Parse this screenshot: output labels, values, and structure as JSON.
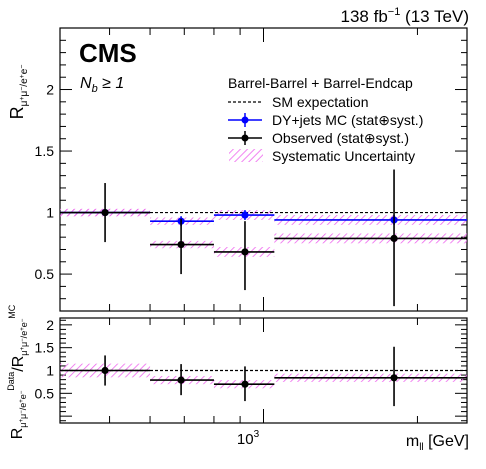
{
  "header": {
    "lumi_label": "138 fb",
    "lumi_exp": "−1",
    "lumi_suffix": " (13 TeV)",
    "experiment": "CMS",
    "nb_label": "N",
    "nb_sub": "b",
    "nb_rest": " ≥ 1"
  },
  "legend": {
    "header": "Barrel-Barrel + Barrel-Endcap",
    "items": [
      {
        "label": "SM expectation",
        "style": "dashed"
      },
      {
        "label": "DY+jets MC (stat⊕syst.)",
        "style": "blue-marker"
      },
      {
        "label": "Observed (stat⊕syst.)",
        "style": "black-marker"
      },
      {
        "label": "Systematic Uncertainty",
        "style": "hatch"
      }
    ]
  },
  "colors": {
    "mc": "#0000ff",
    "obs": "#000000",
    "hatch": "#ee66ee"
  },
  "chart_data": [
    {
      "type": "scatter",
      "ylabel": "R_{μ+μ−/e+e−}",
      "xscale": "log",
      "xlim": [
        400,
        2500
      ],
      "ylim": [
        0.2,
        2.5
      ],
      "yticks": [
        "0.5",
        "1",
        "1.5",
        "2"
      ],
      "reference_line": 1.0,
      "bins": [
        [
          400,
          600
        ],
        [
          600,
          800
        ],
        [
          800,
          1050
        ],
        [
          1050,
          2500
        ]
      ],
      "series": [
        {
          "name": "DY+jets MC (stat⊕syst.)",
          "x": [
            490,
            690,
            920,
            1800
          ],
          "y": [
            1.0,
            0.93,
            0.98,
            0.94
          ],
          "yerr": [
            0.0,
            0.04,
            0.04,
            0.04
          ],
          "syst": [
            0.03,
            0.03,
            0.04,
            0.04
          ]
        },
        {
          "name": "Observed (stat⊕syst.)",
          "x": [
            490,
            690,
            920,
            1800
          ],
          "y": [
            1.0,
            0.74,
            0.68,
            0.79
          ],
          "yerr_up": [
            0.24,
            0.21,
            0.25,
            0.56
          ],
          "yerr_down": [
            0.24,
            0.24,
            0.31,
            0.55
          ],
          "syst": [
            0.03,
            0.03,
            0.04,
            0.04
          ]
        }
      ]
    },
    {
      "type": "scatter",
      "ylabel": "R^{Data}_{μ+μ−/e+e−}/R^{MC}_{μ+μ−/e+e−}",
      "xlabel": "m_{ll} [GeV]",
      "xscale": "log",
      "xlim": [
        400,
        2500
      ],
      "ylim": [
        -0.15,
        2.15
      ],
      "yticks": [
        "0.5",
        "1",
        "1.5",
        "2"
      ],
      "xticks": [
        {
          "value": 1000,
          "base": "10",
          "exp": "3"
        }
      ],
      "reference_line": 1.0,
      "bins": [
        [
          400,
          600
        ],
        [
          600,
          800
        ],
        [
          800,
          1050
        ],
        [
          1050,
          2500
        ]
      ],
      "series": [
        {
          "name": "Data/MC",
          "x": [
            490,
            690,
            920,
            1800
          ],
          "y": [
            1.0,
            0.79,
            0.7,
            0.84
          ],
          "yerr_up": [
            0.33,
            0.35,
            0.39,
            0.68
          ],
          "yerr_down": [
            0.33,
            0.33,
            0.37,
            0.62
          ],
          "syst": [
            0.15,
            0.09,
            0.09,
            0.09
          ]
        }
      ]
    }
  ]
}
